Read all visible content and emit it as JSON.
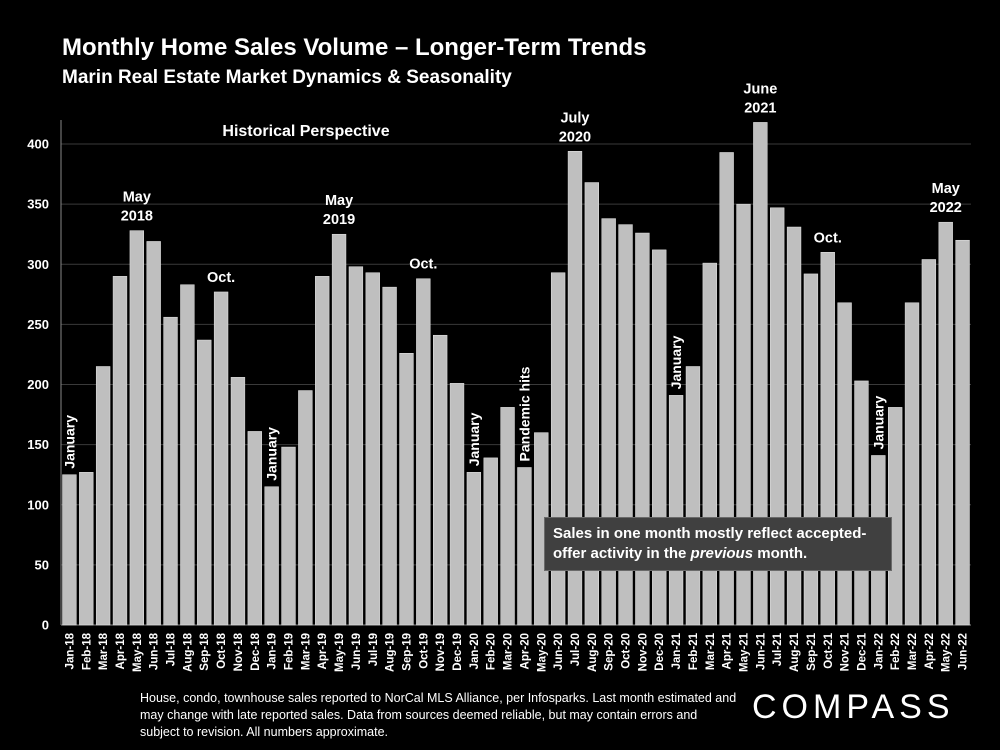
{
  "title": "Monthly Home Sales Volume – Longer-Term Trends",
  "subtitle": "Marin Real Estate Market Dynamics & Seasonality",
  "chart_data": {
    "type": "bar",
    "categories": [
      "Jan-18",
      "Feb-18",
      "Mar-18",
      "Apr-18",
      "May-18",
      "Jun-18",
      "Jul-18",
      "Aug-18",
      "Sep-18",
      "Oct-18",
      "Nov-18",
      "Dec-18",
      "Jan-19",
      "Feb-19",
      "Mar-19",
      "Apr-19",
      "May-19",
      "Jun-19",
      "Jul-19",
      "Aug-19",
      "Sep-19",
      "Oct-19",
      "Nov-19",
      "Dec-19",
      "Jan-20",
      "Feb-20",
      "Mar-20",
      "Apr-20",
      "May-20",
      "Jun-20",
      "Jul-20",
      "Aug-20",
      "Sep-20",
      "Oct-20",
      "Nov-20",
      "Dec-20",
      "Jan-21",
      "Feb-21",
      "Mar-21",
      "Apr-21",
      "May-21",
      "Jun-21",
      "Jul-21",
      "Aug-21",
      "Sep-21",
      "Oct-21",
      "Nov-21",
      "Dec-21",
      "Jan-22",
      "Feb-22",
      "Mar-22",
      "Apr-22",
      "May-22",
      "Jun-22"
    ],
    "values": [
      125,
      127,
      215,
      290,
      328,
      319,
      256,
      283,
      237,
      277,
      206,
      161,
      115,
      148,
      195,
      290,
      325,
      298,
      293,
      281,
      226,
      288,
      241,
      201,
      127,
      139,
      181,
      131,
      160,
      293,
      394,
      368,
      338,
      333,
      326,
      312,
      191,
      215,
      301,
      393,
      350,
      418,
      347,
      331,
      292,
      310,
      268,
      203,
      141,
      181,
      268,
      304,
      335,
      320
    ],
    "yticks": [
      0,
      50,
      100,
      150,
      200,
      250,
      300,
      350,
      400
    ],
    "ylim": [
      0,
      420
    ],
    "grid": true,
    "bar_color": "#bfbfbf",
    "annotations": [
      {
        "index": 0,
        "text": "January",
        "style": "vertical"
      },
      {
        "index": 4,
        "text": "May 2018",
        "lines": [
          "May",
          "2018"
        ]
      },
      {
        "index": 9,
        "text": "Oct.",
        "lines": [
          "Oct."
        ]
      },
      {
        "index": 12,
        "text": "January",
        "style": "vertical"
      },
      {
        "index": 16,
        "text": "May 2019",
        "lines": [
          "May",
          "2019"
        ]
      },
      {
        "index": 21,
        "text": "Oct.",
        "lines": [
          "Oct."
        ]
      },
      {
        "index": 24,
        "text": "January",
        "style": "vertical"
      },
      {
        "index": 27,
        "text": "Pandemic hits",
        "style": "vertical"
      },
      {
        "index": 30,
        "text": "July 2020",
        "lines": [
          "July",
          "2020"
        ]
      },
      {
        "index": 36,
        "text": "January",
        "style": "vertical"
      },
      {
        "index": 41,
        "text": "June 2021",
        "lines": [
          "June",
          "2021"
        ]
      },
      {
        "index": 45,
        "text": "Oct.",
        "lines": [
          "Oct."
        ]
      },
      {
        "index": 48,
        "text": "January",
        "style": "vertical"
      },
      {
        "index": 52,
        "text": "May 2022",
        "lines": [
          "May",
          "2022"
        ]
      }
    ],
    "section_label": "Historical Perspective"
  },
  "note": {
    "part1": "Sales in one month mostly reflect accepted-offer activity in the ",
    "emphasis": "previous",
    "part2": " month."
  },
  "footnote": "House, condo, townhouse sales reported to NorCal MLS Alliance, per Infosparks. Last month estimated and may change with late reported sales. Data from sources deemed reliable, but may contain errors and subject to revision. All numbers approximate.",
  "logo": "COMPASS"
}
